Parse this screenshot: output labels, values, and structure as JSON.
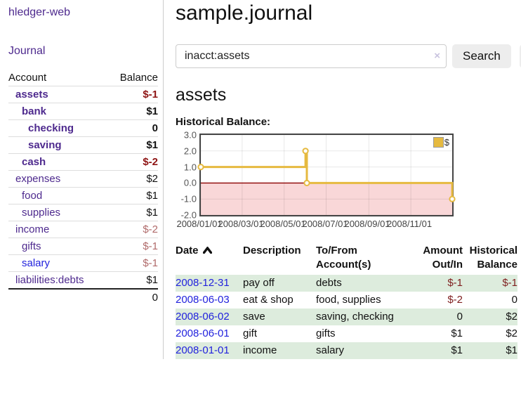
{
  "colors": {
    "link_purple": "#4e2a8e",
    "link_blue": "#2222dd",
    "negative_strong": "#8e1414",
    "negative_soft": "#b06a6a",
    "table_negative": "#7f1f1f",
    "row_stripe_green": "#ddecdd",
    "chart_gold": "#e6ba40",
    "chart_pink": "#f9d7d8",
    "zero_line_red": "#8b0000"
  },
  "app": {
    "brand": "hledger-web",
    "nav_journal": "Journal"
  },
  "sidebar": {
    "headers": {
      "account": "Account",
      "balance": "Balance"
    },
    "rows": [
      {
        "account": "assets",
        "depth": 1,
        "bold": true,
        "balance": "$-1",
        "balance_style": "neg-strong",
        "link": "purple"
      },
      {
        "account": "bank",
        "depth": 2,
        "bold": true,
        "balance": "$1",
        "balance_style": "pos",
        "link": "purple"
      },
      {
        "account": "checking",
        "depth": 3,
        "bold": true,
        "balance": "0",
        "balance_style": "pos",
        "link": "purple"
      },
      {
        "account": "saving",
        "depth": 3,
        "bold": true,
        "balance": "$1",
        "balance_style": "pos",
        "link": "purple"
      },
      {
        "account": "cash",
        "depth": 2,
        "bold": true,
        "balance": "$-2",
        "balance_style": "neg-strong",
        "link": "purple"
      },
      {
        "account": "expenses",
        "depth": 1,
        "bold": false,
        "balance": "$2",
        "balance_style": "pos",
        "link": "purple"
      },
      {
        "account": "food",
        "depth": 2,
        "bold": false,
        "balance": "$1",
        "balance_style": "pos",
        "link": "purple"
      },
      {
        "account": "supplies",
        "depth": 2,
        "bold": false,
        "balance": "$1",
        "balance_style": "pos",
        "link": "purple"
      },
      {
        "account": "income",
        "depth": 1,
        "bold": false,
        "balance": "$-2",
        "balance_style": "neg-soft",
        "link": "purple"
      },
      {
        "account": "gifts",
        "depth": 2,
        "bold": false,
        "balance": "$-1",
        "balance_style": "neg-soft",
        "link": "purple"
      },
      {
        "account": "salary",
        "depth": 2,
        "bold": false,
        "balance": "$-1",
        "balance_style": "neg-soft",
        "link": "blue"
      },
      {
        "account": "liabilities:debts",
        "depth": 1,
        "bold": false,
        "balance": "$1",
        "balance_style": "pos",
        "link": "purple"
      }
    ],
    "total": "0"
  },
  "main": {
    "title": "sample.journal",
    "search": {
      "value": "inacct:assets",
      "clear_icon": "×",
      "button_label": "Search",
      "help_label": "?"
    },
    "account_heading": "assets",
    "chart_label": "Historical Balance:"
  },
  "chart_data": {
    "type": "line",
    "title": "Historical Balance",
    "step": true,
    "series": [
      {
        "name": "$",
        "color": "#e6ba40",
        "points": [
          [
            "2008-01-01",
            1
          ],
          [
            "2008-06-01",
            2
          ],
          [
            "2008-06-03",
            0
          ],
          [
            "2008-12-31",
            -1
          ]
        ]
      }
    ],
    "xrange": [
      "2008-01-01",
      "2008-12-31"
    ],
    "ylim": [
      -2,
      3
    ],
    "yticks": [
      "3.0",
      "2.0",
      "1.0",
      "0.0",
      "-1.0",
      "-2.0"
    ],
    "xticks": [
      "2008/01/01",
      "2008/03/01",
      "2008/05/01",
      "2008/07/01",
      "2008/09/01",
      "2008/11/01"
    ],
    "grid": true,
    "legend_position": "top-right",
    "legend_label": "$",
    "negative_region_color": "#f9d7d8",
    "zero_line_color": "#8b0000"
  },
  "register": {
    "headers": [
      {
        "lines": [
          "Date"
        ],
        "align": "left",
        "sorted": "asc"
      },
      {
        "lines": [
          "Description"
        ],
        "align": "left"
      },
      {
        "lines": [
          "To/From",
          "Account(s)"
        ],
        "align": "left"
      },
      {
        "lines": [
          "Amount",
          "Out/In"
        ],
        "align": "right"
      },
      {
        "lines": [
          "Historical",
          "Balance"
        ],
        "align": "right"
      }
    ],
    "rows": [
      {
        "date": "2008-12-31",
        "description": "pay off",
        "accounts": "debts",
        "amount": "$-1",
        "amount_negative": true,
        "balance": "$-1",
        "balance_negative": true
      },
      {
        "date": "2008-06-03",
        "description": "eat & shop",
        "accounts": "food, supplies",
        "amount": "$-2",
        "amount_negative": true,
        "balance": "0",
        "balance_negative": false
      },
      {
        "date": "2008-06-02",
        "description": "save",
        "accounts": "saving, checking",
        "amount": "0",
        "amount_negative": false,
        "balance": "$2",
        "balance_negative": false
      },
      {
        "date": "2008-06-01",
        "description": "gift",
        "accounts": "gifts",
        "amount": "$1",
        "amount_negative": false,
        "balance": "$2",
        "balance_negative": false
      },
      {
        "date": "2008-01-01",
        "description": "income",
        "accounts": "salary",
        "amount": "$1",
        "amount_negative": false,
        "balance": "$1",
        "balance_negative": false
      }
    ]
  }
}
